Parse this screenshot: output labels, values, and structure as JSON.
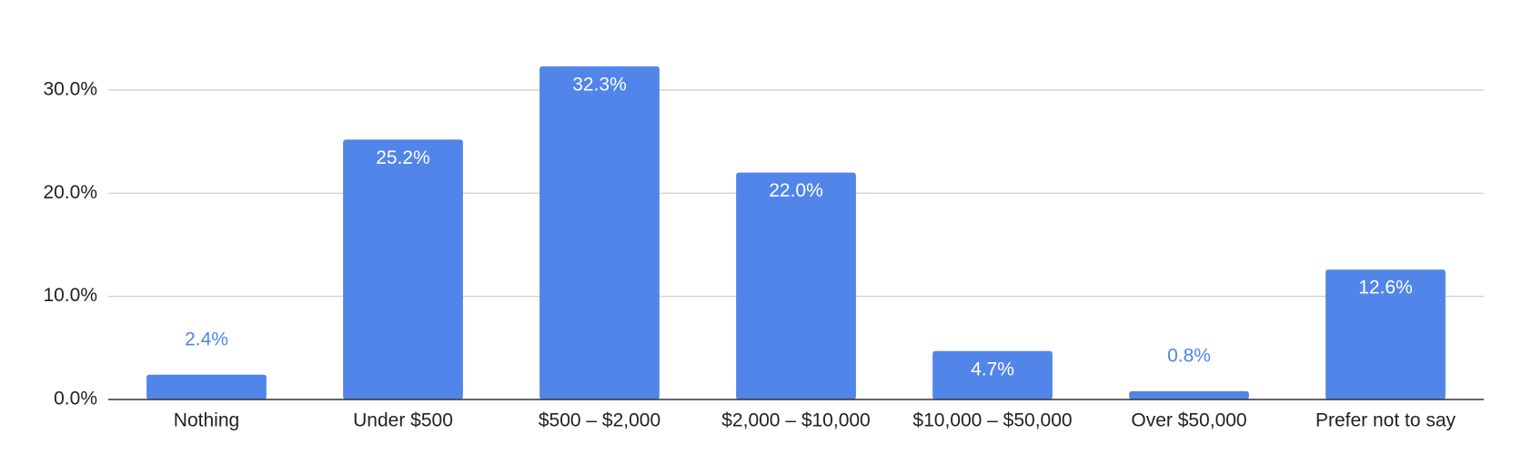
{
  "chart_data": {
    "type": "bar",
    "categories": [
      "Nothing",
      "Under $500",
      "$500 – $2,000",
      "$2,000 – $10,000",
      "$10,000 – $50,000",
      "Over $50,000",
      "Prefer not to say"
    ],
    "values": [
      2.4,
      25.2,
      32.3,
      22.0,
      4.7,
      0.8,
      12.6
    ],
    "value_labels": [
      "2.4%",
      "25.2%",
      "32.3%",
      "22.0%",
      "4.7%",
      "0.8%",
      "12.6%"
    ],
    "color": "#5185e9",
    "ylim": [
      0,
      35
    ],
    "yticks": [
      {
        "value": 0,
        "label": "0.0%"
      },
      {
        "value": 10,
        "label": "10.0%"
      },
      {
        "value": 20,
        "label": "20.0%"
      },
      {
        "value": 30,
        "label": "30.0%"
      }
    ],
    "grid": true
  }
}
